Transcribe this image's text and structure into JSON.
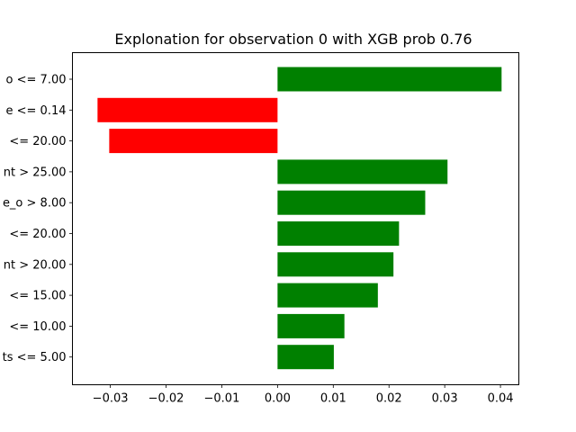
{
  "chart_data": {
    "type": "bar",
    "orientation": "horizontal",
    "title": "Explonation for observation 0 with XGB prob 0.76",
    "xlabel": "",
    "ylabel": "",
    "xlim": [
      -0.0368,
      0.0433
    ],
    "xticks": [
      -0.03,
      -0.02,
      -0.01,
      0.0,
      0.01,
      0.02,
      0.03,
      0.04
    ],
    "xtick_labels": [
      "−0.03",
      "−0.02",
      "−0.01",
      "0.00",
      "0.01",
      "0.02",
      "0.03",
      "0.04"
    ],
    "categories": [
      "o <= 7.00",
      "e <= 0.14",
      "<= 20.00",
      "nt > 25.00",
      "e_o > 8.00",
      "<= 20.00",
      "nt > 20.00",
      "<= 15.00",
      "<= 10.00",
      "ts <= 5.00"
    ],
    "values": [
      0.0402,
      -0.0323,
      -0.0302,
      0.0305,
      0.0265,
      0.0218,
      0.0208,
      0.018,
      0.012,
      0.0101
    ],
    "colors": {
      "positive": "#008000",
      "negative": "#ff0000"
    },
    "grid": false
  }
}
